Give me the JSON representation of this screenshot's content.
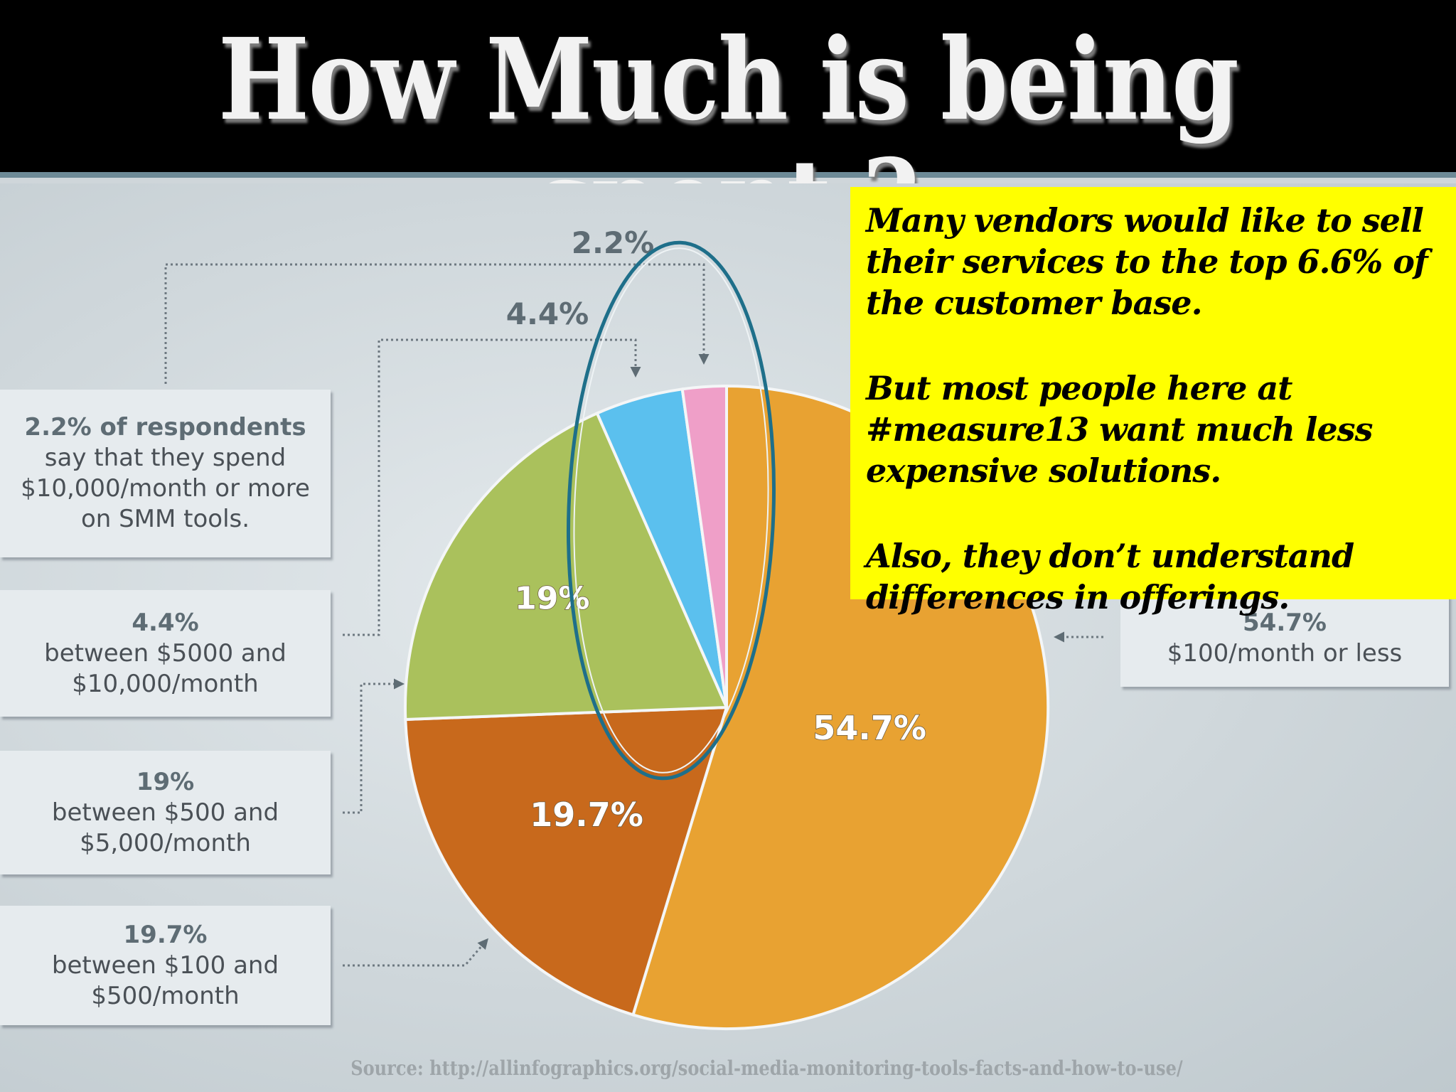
{
  "page": {
    "title": "How Much is being spent ?",
    "source": "Source: http://allinfographics.org/social-media-monitoring-tools-facts-and-how-to-use/"
  },
  "callout": {
    "paragraphs": [
      "Many vendors would like to sell their services to the top 6.6% of the customer base.",
      "But most people here at #measure13 want much less  expensive solutions.",
      "Also, they don’t  understand differences in offerings."
    ],
    "background": "#ffff00"
  },
  "legend": {
    "top": {
      "pct": "2.2% of respondents",
      "text1": "say that they spend",
      "text2": "$10,000/month or more",
      "text3": "on SMM tools."
    },
    "b4": {
      "pct": "4.4%",
      "text1": "between $5000 and",
      "text2": "$10,000/month"
    },
    "b19": {
      "pct": "19%",
      "text1": "between $500 and",
      "text2": "$5,000/month"
    },
    "b197": {
      "pct": "19.7%",
      "text1": "between $100 and",
      "text2": "$500/month"
    },
    "b547": {
      "pct": "54.7%",
      "text1": "$100/month or less"
    }
  },
  "chart_data": {
    "type": "pie",
    "title": "How Much is being spent ?",
    "slices": [
      {
        "label": "$100/month or less",
        "value": 54.7,
        "display": "54.7%",
        "color": "#e8a232"
      },
      {
        "label": "between $100 and $500/month",
        "value": 19.7,
        "display": "19.7%",
        "color": "#c8691c"
      },
      {
        "label": "between $500 and $5,000/month",
        "value": 19,
        "display": "19%",
        "color": "#aac15c"
      },
      {
        "label": "between $5000 and $10,000/month",
        "value": 4.4,
        "display": "4.4%",
        "color": "#5bc0ee"
      },
      {
        "label": "$10,000/month or more",
        "value": 2.2,
        "display": "2.2%",
        "color": "#ef9fc8"
      }
    ],
    "highlight": {
      "slices": [
        "4.4%",
        "2.2%"
      ],
      "color": "#1e6f8a"
    }
  }
}
